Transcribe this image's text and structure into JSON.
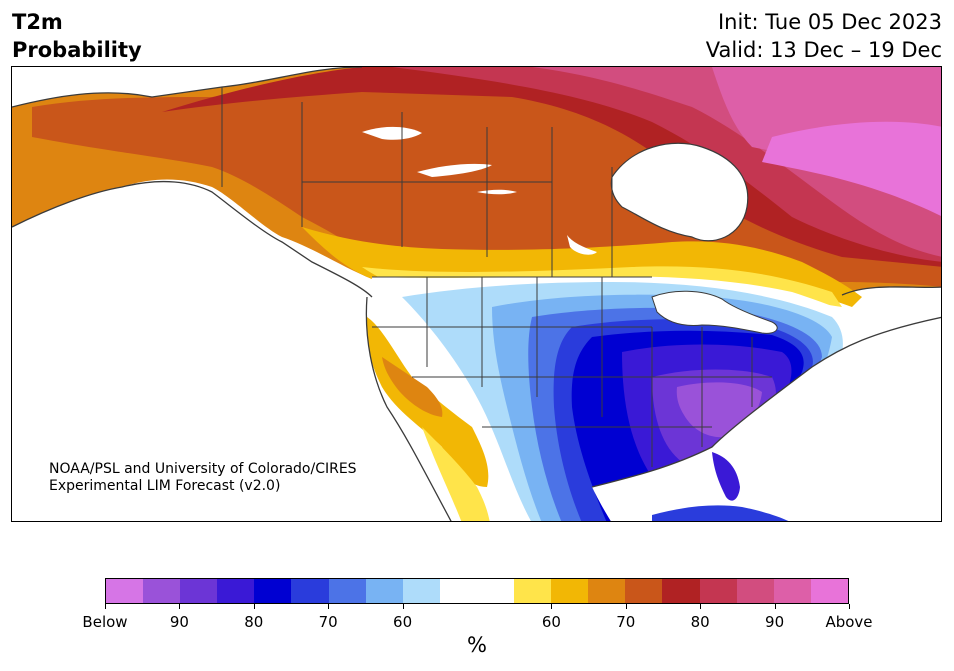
{
  "header": {
    "title_line1": "T2m",
    "title_line2": "Probability",
    "init": "Init: Tue 05 Dec 2023",
    "valid": "Valid: 13 Dec – 19 Dec"
  },
  "credit": {
    "line1": "NOAA/PSL and University of Colorado/CIRES",
    "line2": "Experimental LIM Forecast (v2.0)"
  },
  "legend": {
    "colors": [
      "#d675e6",
      "#9a52d9",
      "#6c35d6",
      "#3a19d6",
      "#0000d2",
      "#2a3cdc",
      "#4c73e7",
      "#78b3f3",
      "#aedcfa",
      "#ffffff",
      "#ffffff",
      "#ffe44a",
      "#f2b705",
      "#de8511",
      "#c9561a",
      "#b02223",
      "#c43651",
      "#d24d7f",
      "#dd5fa8",
      "#e873d9"
    ],
    "tick_labels": [
      "Below",
      "90",
      "80",
      "70",
      "60",
      "60",
      "70",
      "80",
      "90",
      "Above"
    ],
    "unit": "%"
  },
  "map_colors": {
    "ocean": "#ffffff",
    "lakes": "#ffffff",
    "borders": "#3b3b3b"
  }
}
